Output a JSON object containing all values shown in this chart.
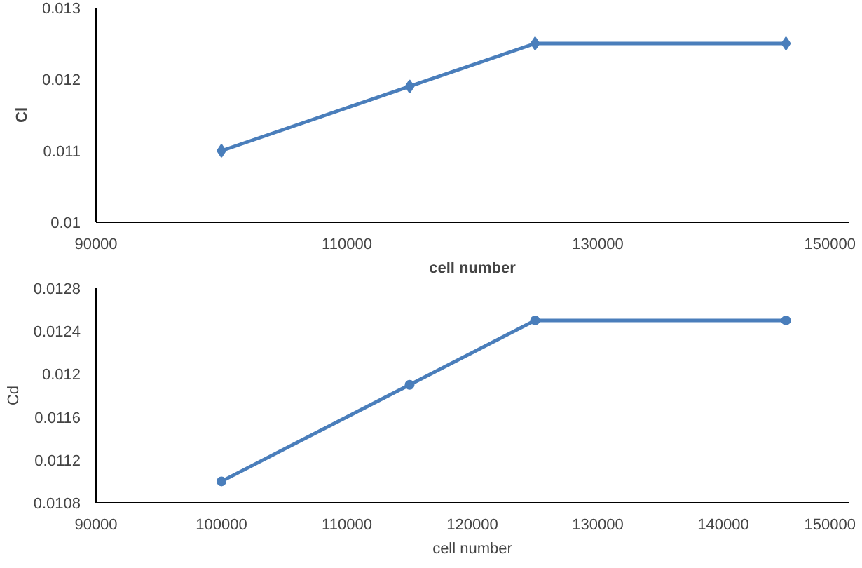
{
  "chart_data": [
    {
      "type": "line",
      "xlabel": "cell number",
      "ylabel": "Cl",
      "x": [
        100000,
        115000,
        125000,
        145000
      ],
      "series": [
        {
          "color": "#4a7ebb",
          "values": [
            0.011,
            0.0119,
            0.0125,
            0.0125
          ]
        }
      ],
      "xlim": [
        90000,
        150000
      ],
      "xticks": [
        90000,
        110000,
        130000,
        150000
      ],
      "ylim": [
        0.01,
        0.013
      ],
      "yticks": [
        0.01,
        0.011,
        0.012,
        0.013
      ],
      "marker": "diamond",
      "grid": false
    },
    {
      "type": "line",
      "xlabel": "cell number",
      "ylabel": "Cd",
      "x": [
        100000,
        115000,
        125000,
        145000
      ],
      "series": [
        {
          "color": "#4a7ebb",
          "values": [
            0.011,
            0.0119,
            0.0125,
            0.0125
          ]
        }
      ],
      "xlim": [
        90000,
        150000
      ],
      "xticks": [
        90000,
        100000,
        110000,
        120000,
        130000,
        140000,
        150000
      ],
      "ylim": [
        0.0108,
        0.0128
      ],
      "yticks": [
        0.0108,
        0.0112,
        0.0116,
        0.012,
        0.0124,
        0.0128
      ],
      "marker": "circle",
      "grid": false
    }
  ]
}
